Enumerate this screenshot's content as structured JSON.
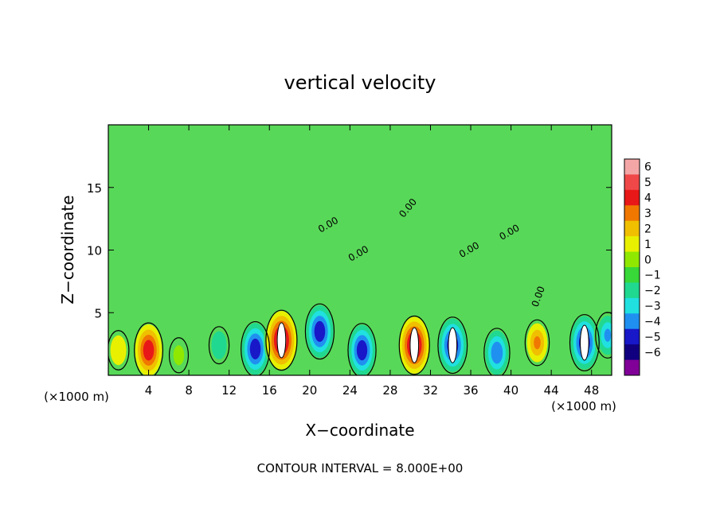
{
  "chart_data": {
    "type": "heatmap",
    "title": "vertical velocity",
    "xlabel": "X−coordinate",
    "ylabel": "Z−coordinate",
    "x_unit_left": "(×1000 m)",
    "x_unit_right": "(×1000 m)",
    "footer": "CONTOUR INTERVAL = 8.000E+00",
    "xlim": [
      0,
      50
    ],
    "ylim": [
      0,
      20
    ],
    "x_ticks": [
      4,
      8,
      12,
      16,
      20,
      24,
      28,
      32,
      36,
      40,
      44,
      48
    ],
    "y_ticks": [
      5,
      10,
      15
    ],
    "contour_label": "0.00",
    "colorbar": {
      "ticks": [
        "6",
        "5",
        "4",
        "3",
        "2",
        "1",
        "0",
        "−1",
        "−2",
        "−3",
        "−4",
        "−5",
        "−6"
      ],
      "colors": [
        "#f4a6a6",
        "#f04848",
        "#e81818",
        "#f07800",
        "#f0c000",
        "#e8f000",
        "#90e800",
        "#38d838",
        "#20d890",
        "#20e0e0",
        "#2090f0",
        "#1818c8",
        "#100080",
        "#800098"
      ]
    },
    "cells": [
      {
        "x": 1,
        "z": 2,
        "w": 1.6
      },
      {
        "x": 4,
        "z": 2,
        "w": 4.5
      },
      {
        "x": 7,
        "z": 1.6,
        "w": 0.8
      },
      {
        "x": 11,
        "z": 2.4,
        "w": -1.2
      },
      {
        "x": 14.6,
        "z": 2.1,
        "w": -4.5
      },
      {
        "x": 17.2,
        "z": 2.8,
        "w": 5.5
      },
      {
        "x": 21,
        "z": 3.5,
        "w": -4.6
      },
      {
        "x": 25.2,
        "z": 2,
        "w": -4.3
      },
      {
        "x": 30.4,
        "z": 2.4,
        "w": 5.2
      },
      {
        "x": 34.2,
        "z": 2.4,
        "w": -4.8
      },
      {
        "x": 38.6,
        "z": 1.8,
        "w": -3.4
      },
      {
        "x": 42.6,
        "z": 2.6,
        "w": 2.8
      },
      {
        "x": 47.3,
        "z": 2.6,
        "w": -4.8
      },
      {
        "x": 49.6,
        "z": 3.2,
        "w": -2.8
      }
    ]
  }
}
